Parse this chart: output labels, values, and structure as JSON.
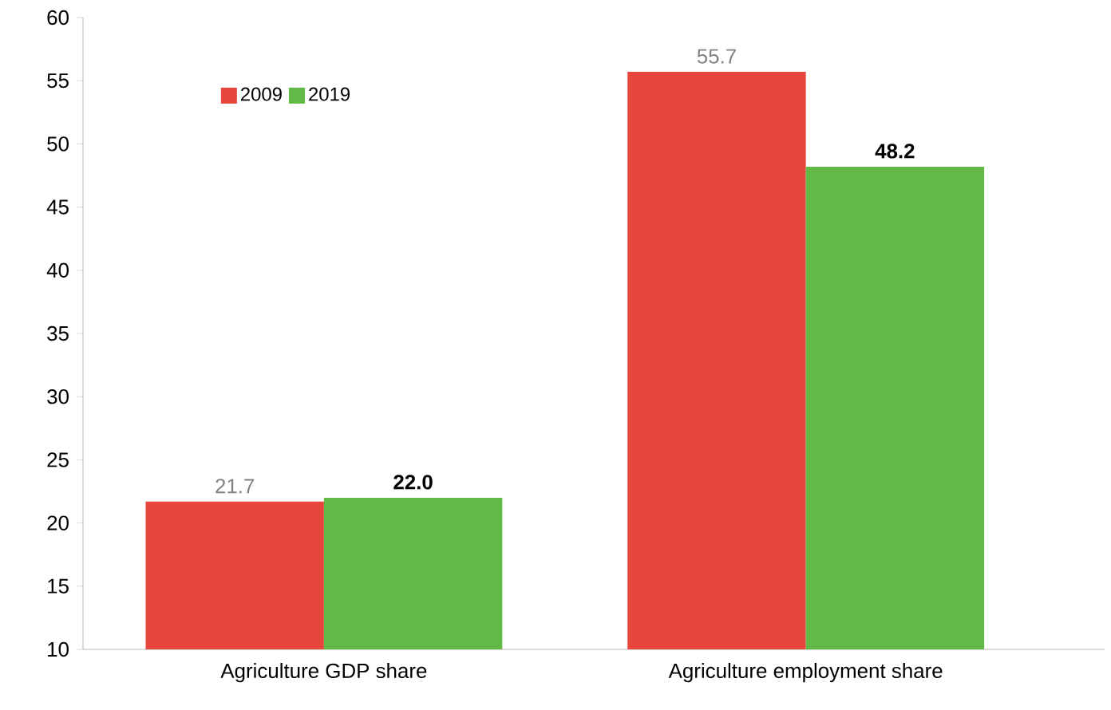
{
  "chart_data": {
    "type": "bar",
    "categories": [
      "Agriculture GDP share",
      "Agriculture employment share"
    ],
    "series": [
      {
        "name": "2009",
        "color": "#e8453c",
        "values": [
          21.7,
          55.7
        ],
        "value_labels": [
          "21.7",
          "55.7"
        ]
      },
      {
        "name": "2019",
        "color": "#63b946",
        "values": [
          22.0,
          48.2
        ],
        "value_labels": [
          "22.0",
          "48.2"
        ]
      }
    ],
    "ylim": [
      10,
      60
    ],
    "yticks": [
      10,
      15,
      20,
      25,
      30,
      35,
      40,
      45,
      50,
      55,
      60
    ],
    "grid": false,
    "legend": "top left"
  }
}
